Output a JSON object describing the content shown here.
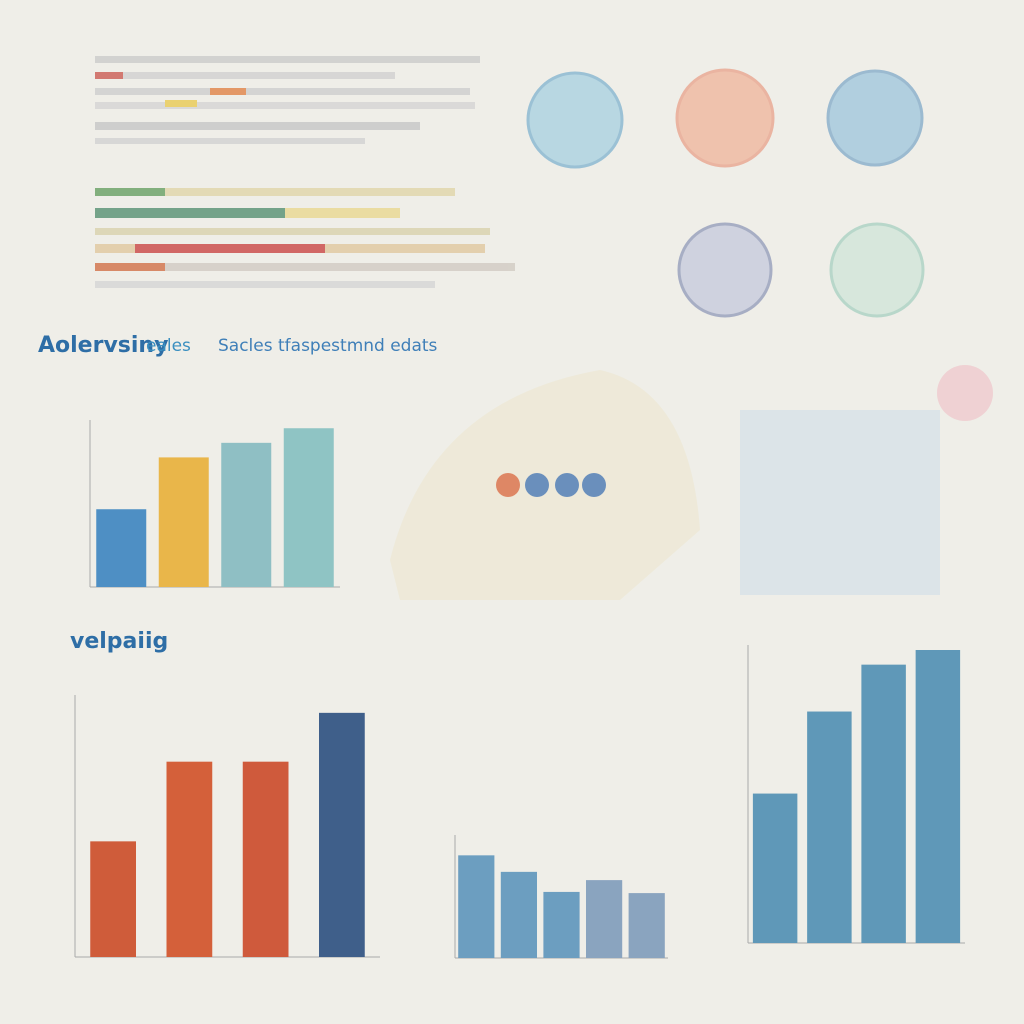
{
  "headings": {
    "main": "Aolervsiny",
    "main_suffix": "eales",
    "subtitle": "Sacles tfaspestmnd edats",
    "second": "velpaiig"
  },
  "chart_data": [
    {
      "type": "bar",
      "values": [
        48,
        80,
        89,
        98
      ],
      "colors": [
        "#4e8fc4",
        "#e9b64a",
        "#8fbfc4",
        "#8fc4c4"
      ],
      "ylim": [
        0,
        100
      ]
    },
    {
      "type": "bar",
      "values": [
        45,
        76,
        76,
        95
      ],
      "colors": [
        "#cf5c3a",
        "#d4603a",
        "#cf5a3c",
        "#3f5f8a"
      ],
      "ylim": [
        0,
        100
      ]
    },
    {
      "type": "bar",
      "values": [
        87,
        73,
        56,
        66,
        55
      ],
      "colors": [
        "#6c9ec0",
        "#6c9ec0",
        "#6c9ec0",
        "#8aa4bf",
        "#8aa4bf"
      ],
      "ylim": [
        0,
        100
      ]
    },
    {
      "type": "bar",
      "values": [
        51,
        79,
        95,
        100
      ],
      "colors": [
        "#5f98b8",
        "#5f98b8",
        "#5f98b8",
        "#5f98b8"
      ],
      "ylim": [
        0,
        100
      ]
    }
  ]
}
